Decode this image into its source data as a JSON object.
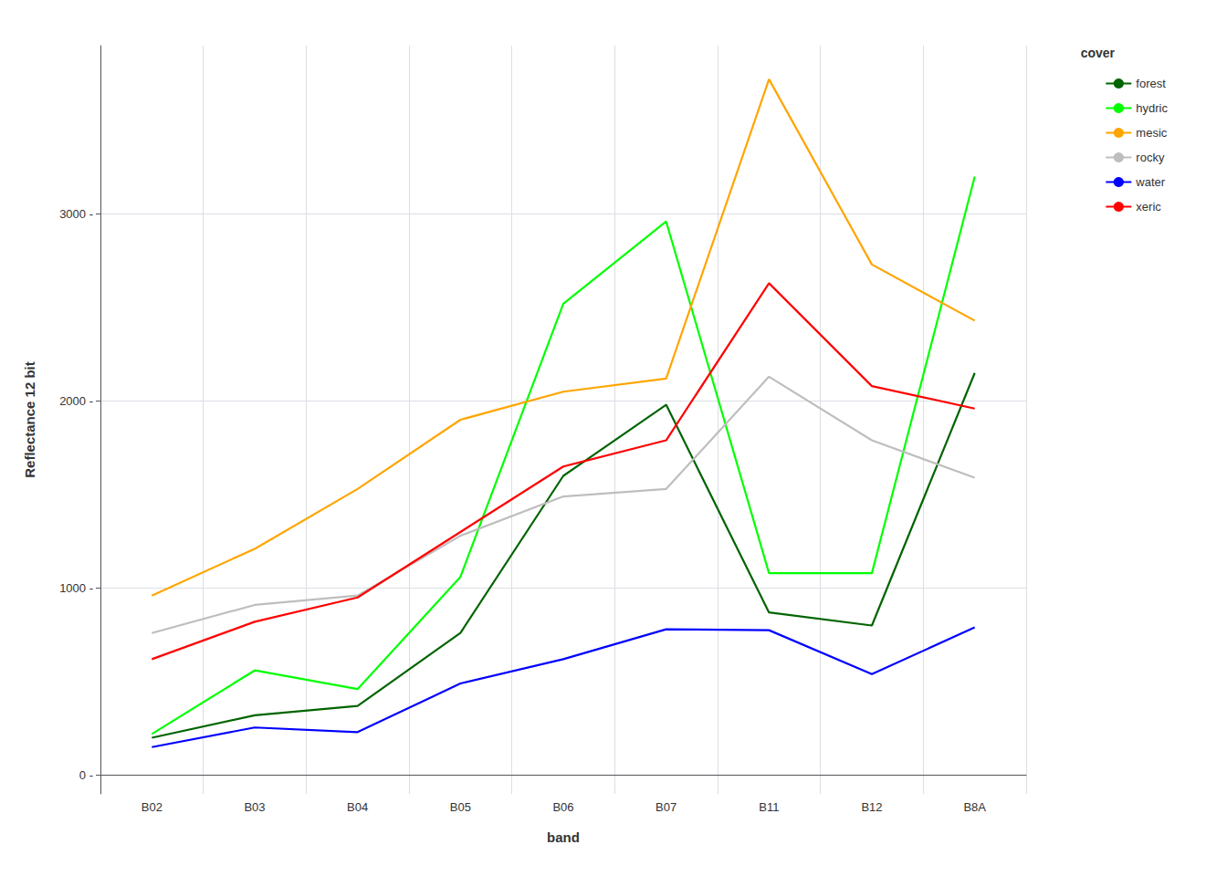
{
  "chart_data": {
    "type": "line",
    "categories": [
      "B02",
      "B03",
      "B04",
      "B05",
      "B06",
      "B07",
      "B11",
      "B12",
      "B8A"
    ],
    "series": [
      {
        "name": "forest",
        "color": "#006400",
        "values": [
          200,
          320,
          370,
          760,
          1600,
          1980,
          870,
          800,
          2150
        ]
      },
      {
        "name": "hydric",
        "color": "#00FF00",
        "values": [
          220,
          560,
          460,
          1060,
          2520,
          2960,
          1080,
          1080,
          3200
        ]
      },
      {
        "name": "mesic",
        "color": "#FFA500",
        "values": [
          960,
          1210,
          1530,
          1900,
          2050,
          2120,
          3720,
          2730,
          2430
        ]
      },
      {
        "name": "rocky",
        "color": "#BEBEBE",
        "values": [
          760,
          910,
          960,
          1280,
          1490,
          1530,
          2130,
          1790,
          1590
        ]
      },
      {
        "name": "water",
        "color": "#0000FF",
        "values": [
          150,
          255,
          230,
          490,
          620,
          780,
          775,
          540,
          790
        ]
      },
      {
        "name": "xeric",
        "color": "#FF0000",
        "values": [
          620,
          820,
          950,
          1300,
          1650,
          1790,
          2630,
          2080,
          1960
        ]
      }
    ],
    "x_label": "band",
    "y_label": "Reflectance 12 bit",
    "legend_title": "cover",
    "ylim": [
      -100,
      3900
    ],
    "yticks": [
      {
        "value": 0,
        "label": "0 -"
      },
      {
        "value": 1000,
        "label": "1000 -"
      },
      {
        "value": 2000,
        "label": "2000 -"
      },
      {
        "value": 3000,
        "label": "3000 -"
      }
    ],
    "grid": true,
    "legend": "right"
  }
}
